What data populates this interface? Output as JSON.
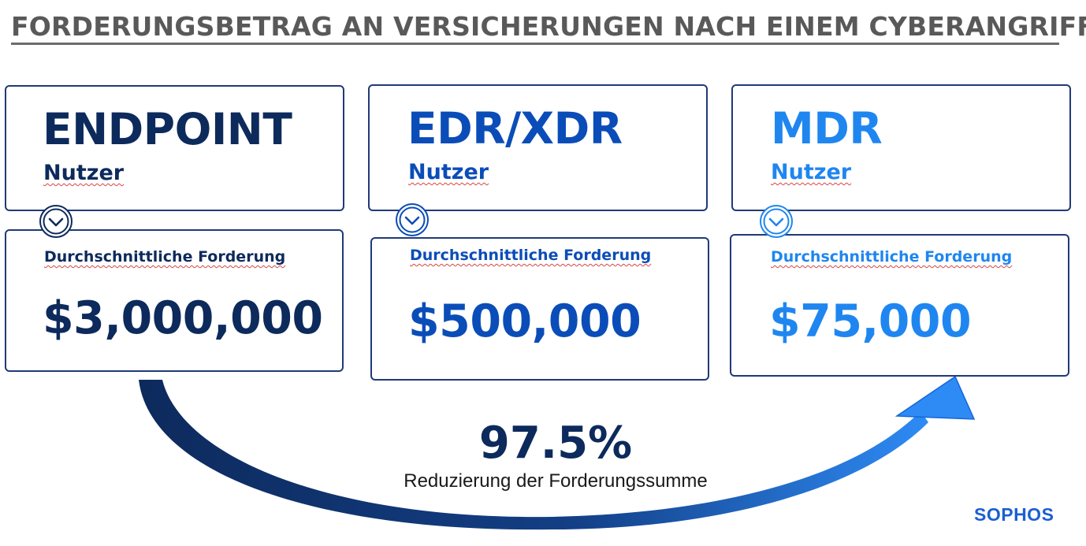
{
  "title": "FORDERUNGSBETRAG AN VERSICHERUNGEN NACH EINEM CYBERANGRIFF",
  "columns": [
    {
      "name": "ENDPOINT",
      "sub": "Nutzer",
      "label": "Durchschnittliche Forderung",
      "amount": "$3,000,000",
      "color": "#0d2a5c"
    },
    {
      "name": "EDR/XDR",
      "sub": "Nutzer",
      "label": "Durchschnittliche Forderung",
      "amount": "$500,000",
      "color": "#0b4db8"
    },
    {
      "name": "MDR",
      "sub": "Nutzer",
      "label": "Durchschnittliche Forderung",
      "amount": "$75,000",
      "color": "#1f86f0"
    }
  ],
  "summary": {
    "percent": "97.5%",
    "text": "Reduzierung der Forderungssumme"
  },
  "logo": "SOPHOS",
  "colors": {
    "title": "#595959",
    "border": "#1f3a78",
    "arrow_start": "#0d2a5c",
    "arrow_end": "#2e8bf5",
    "logo": "#1c5fd0"
  }
}
